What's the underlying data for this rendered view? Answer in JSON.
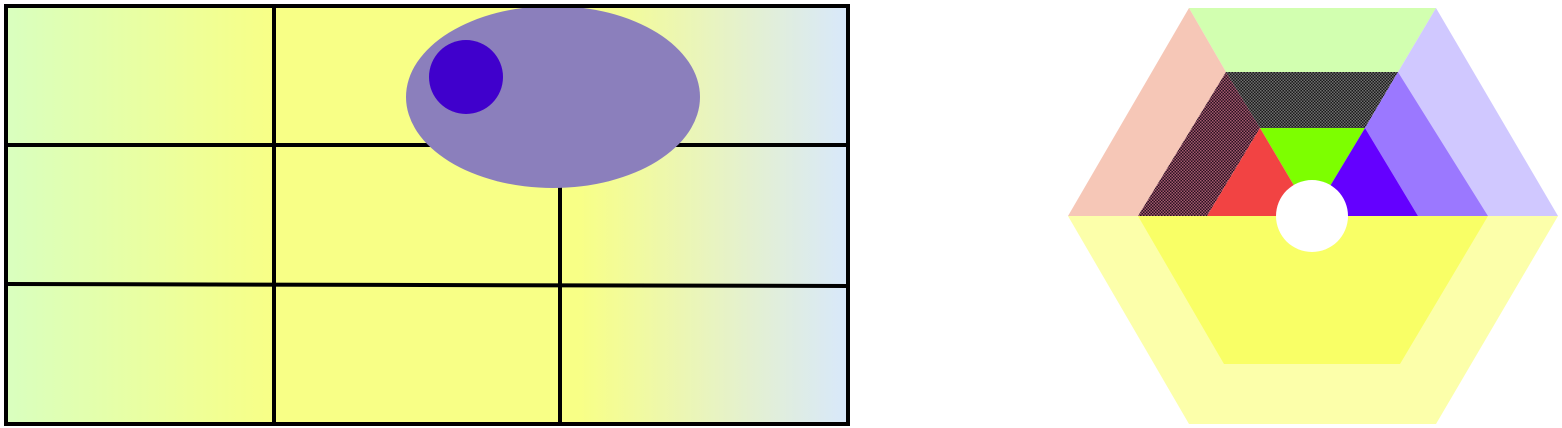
{
  "grid_figure": {
    "rows": 3,
    "columns": 3,
    "line_color": "#000000",
    "gradient_colors": {
      "left": "#d9ffbf",
      "middle": "#f8ff86",
      "right": "#d8e8fb"
    },
    "ellipse_color": "#8b7fbc",
    "circle_color": "#4000cc"
  },
  "hexagon_figure": {
    "colors": {
      "top_outer": "#d2ffb0",
      "top_inner_pattern": "#2d2d2d",
      "top_core": "#7dff00",
      "left_outer": "#f6c7b7",
      "left_inner_pattern": "#4a2030",
      "left_core": "#f24343",
      "right_outer": "#d0c8ff",
      "right_inner": "#9b78ff",
      "right_core": "#6400ff",
      "bottom_outer": "#fcffaa",
      "bottom_inner": "#f9ff66",
      "center_hole": "#ffffff"
    }
  }
}
